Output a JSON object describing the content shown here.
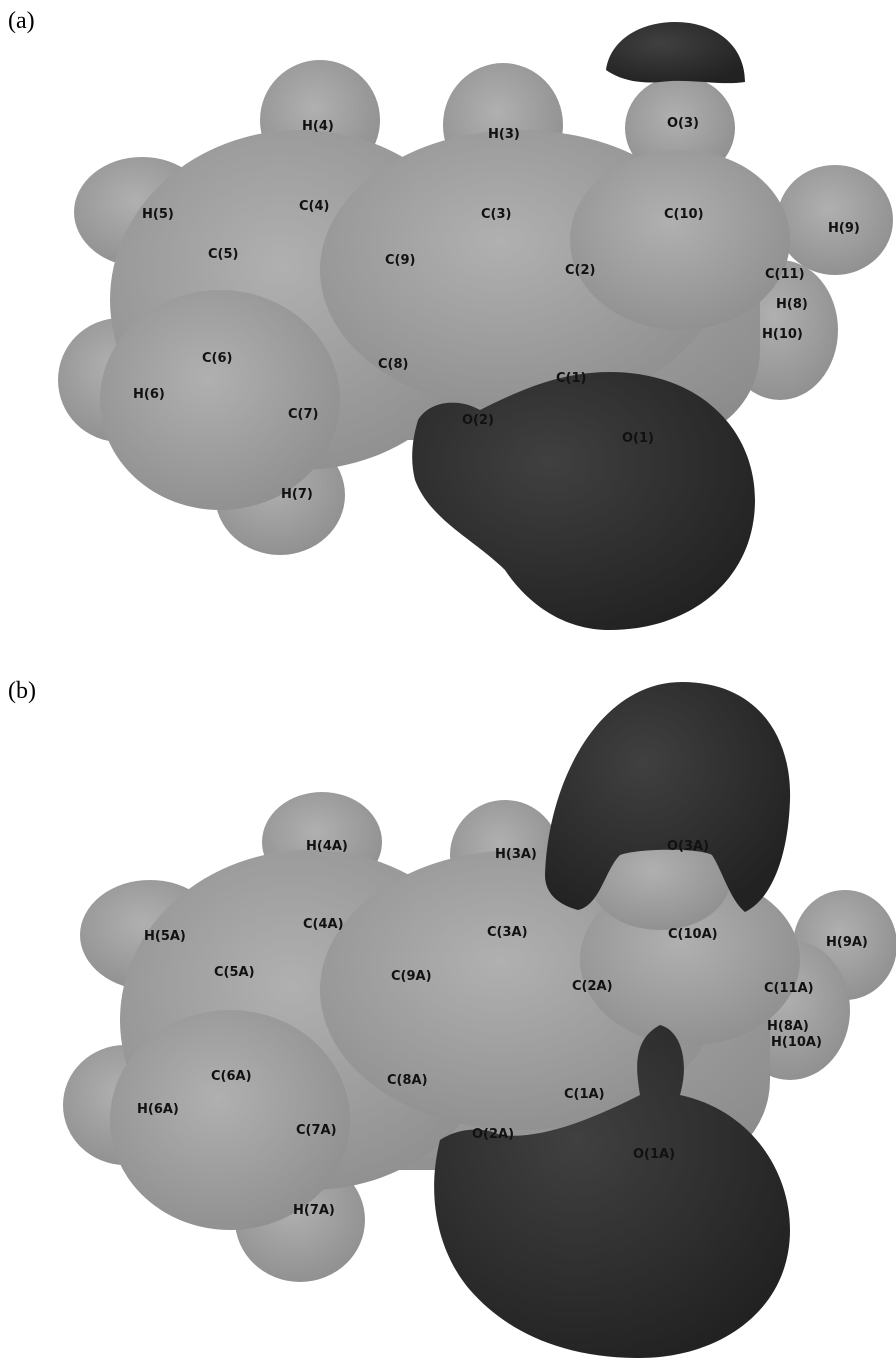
{
  "panels": [
    {
      "label": "(a)",
      "atoms": [
        "H(4)",
        "H(3)",
        "O(3)",
        "H(5)",
        "C(4)",
        "C(3)",
        "C(10)",
        "H(9)",
        "C(5)",
        "C(9)",
        "C(2)",
        "C(11)",
        "H(8)",
        "H(10)",
        "C(6)",
        "C(8)",
        "C(1)",
        "H(6)",
        "C(7)",
        "O(2)",
        "O(1)",
        "H(7)"
      ]
    },
    {
      "label": "(b)",
      "atoms": [
        "H(4A)",
        "H(3A)",
        "O(3A)",
        "H(5A)",
        "C(4A)",
        "C(3A)",
        "C(10A)",
        "H(9A)",
        "C(5A)",
        "C(9A)",
        "C(2A)",
        "C(11A)",
        "H(8A)",
        "H(10A)",
        "C(6A)",
        "C(8A)",
        "C(1A)",
        "H(6A)",
        "C(7A)",
        "O(2A)",
        "O(1A)",
        "H(7A)"
      ]
    }
  ],
  "colors": {
    "surface": "#9a9a9a",
    "surface_highlight": "#b4b4b4",
    "negative_region": "#2e2e2e"
  }
}
